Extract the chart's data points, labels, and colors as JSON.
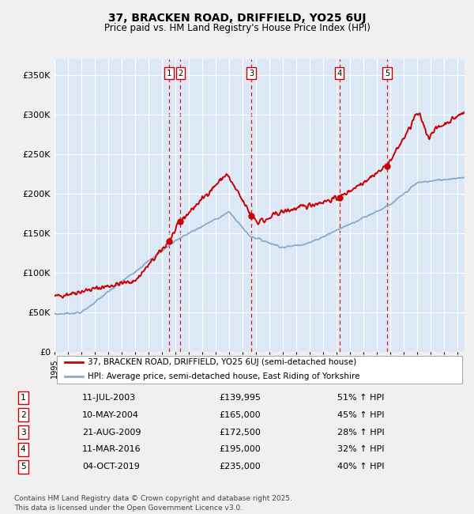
{
  "title1": "37, BRACKEN ROAD, DRIFFIELD, YO25 6UJ",
  "title2": "Price paid vs. HM Land Registry's House Price Index (HPI)",
  "legend_line1": "37, BRACKEN ROAD, DRIFFIELD, YO25 6UJ (semi-detached house)",
  "legend_line2": "HPI: Average price, semi-detached house, East Riding of Yorkshire",
  "footer": "Contains HM Land Registry data © Crown copyright and database right 2025.\nThis data is licensed under the Open Government Licence v3.0.",
  "sale_color": "#cc0000",
  "hpi_color": "#88aacc",
  "plot_bg": "#dce8f5",
  "fig_bg": "#f0f0f0",
  "ylim": [
    0,
    370000
  ],
  "yticks": [
    0,
    50000,
    100000,
    150000,
    200000,
    250000,
    300000,
    350000
  ],
  "ytick_labels": [
    "£0",
    "£50K",
    "£100K",
    "£150K",
    "£200K",
    "£250K",
    "£300K",
    "£350K"
  ],
  "transactions": [
    {
      "num": 1,
      "date": "11-JUL-2003",
      "price": 139995,
      "pct": "51% ↑ HPI",
      "year": 2003.53,
      "price_val": 139995
    },
    {
      "num": 2,
      "date": "10-MAY-2004",
      "price": 165000,
      "pct": "45% ↑ HPI",
      "year": 2004.36,
      "price_val": 165000
    },
    {
      "num": 3,
      "date": "21-AUG-2009",
      "price": 172500,
      "pct": "28% ↑ HPI",
      "year": 2009.64,
      "price_val": 172500
    },
    {
      "num": 4,
      "date": "11-MAR-2016",
      "price": 195000,
      "pct": "32% ↑ HPI",
      "year": 2016.19,
      "price_val": 195000
    },
    {
      "num": 5,
      "date": "04-OCT-2019",
      "price": 235000,
      "pct": "40% ↑ HPI",
      "year": 2019.75,
      "price_val": 235000
    }
  ],
  "xmin": 1995,
  "xmax": 2025.5
}
